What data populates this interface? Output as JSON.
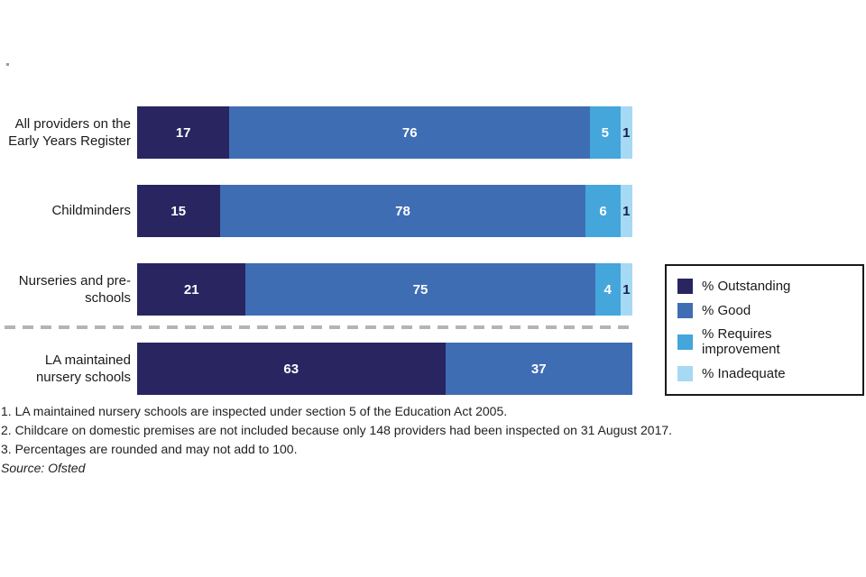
{
  "chart_data": {
    "type": "bar",
    "subtype": "horizontal-stacked",
    "unit": "%",
    "title": "",
    "xlabel": "",
    "ylabel": "",
    "xlim": [
      0,
      100
    ],
    "legend_position": "right",
    "separator_after_category_index": 2,
    "categories": [
      "All providers on the Early Years Register",
      "Childminders",
      "Nurseries and pre-schools",
      "LA maintained nursery schools"
    ],
    "series": [
      {
        "name": "% Outstanding",
        "color": "#282561",
        "values": [
          17,
          15,
          21,
          63
        ]
      },
      {
        "name": "% Good",
        "color": "#3f6db4",
        "values": [
          76,
          78,
          75,
          37
        ]
      },
      {
        "name": "% Requires improvement",
        "color": "#44a6db",
        "values": [
          5,
          6,
          4,
          0
        ]
      },
      {
        "name": "% Inadequate",
        "color": "#a6d9f4",
        "values": [
          1,
          1,
          1,
          0
        ]
      }
    ]
  },
  "footnotes": [
    "1. LA maintained nursery schools are inspected under section 5 of the Education Act 2005.",
    "2. Childcare on domestic premises are not included because only 148 providers had been inspected on 31 August 2017.",
    "3. Percentages are rounded and may not add to 100."
  ],
  "source": "Source: Ofsted"
}
